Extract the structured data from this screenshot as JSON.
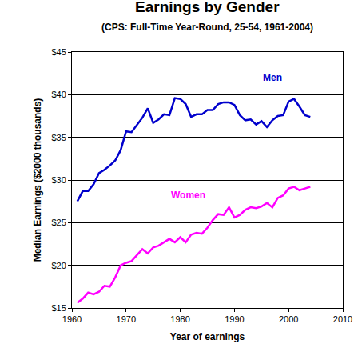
{
  "chart_data": {
    "type": "line",
    "title": "Earnings by Gender",
    "subtitle": "(CPS: Full-Time Year-Round, 25-54, 1961-2004)",
    "x_label": "Year of earnings",
    "y_label": "Median Earnings ($2000 thousands)",
    "x": [
      1961,
      1962,
      1963,
      1964,
      1965,
      1966,
      1967,
      1968,
      1969,
      1970,
      1971,
      1972,
      1973,
      1974,
      1975,
      1976,
      1977,
      1978,
      1979,
      1980,
      1981,
      1982,
      1983,
      1984,
      1985,
      1986,
      1987,
      1988,
      1989,
      1990,
      1991,
      1992,
      1993,
      1994,
      1995,
      1996,
      1997,
      1998,
      1999,
      2000,
      2001,
      2002,
      2003,
      2004
    ],
    "series": [
      {
        "name": "Men",
        "color": "#0000cc",
        "values": [
          27.5,
          28.7,
          28.7,
          29.5,
          30.8,
          31.2,
          31.7,
          32.3,
          33.5,
          35.7,
          35.6,
          36.5,
          37.3,
          38.4,
          36.7,
          37.1,
          37.7,
          37.6,
          39.6,
          39.5,
          38.9,
          37.4,
          37.7,
          37.7,
          38.2,
          38.2,
          38.9,
          39.1,
          39.1,
          38.8,
          37.6,
          37.0,
          37.1,
          36.5,
          36.9,
          36.2,
          37.0,
          37.5,
          37.6,
          39.2,
          39.5,
          38.6,
          37.6,
          37.4
        ]
      },
      {
        "name": "Women",
        "color": "#ff00ff",
        "values": [
          15.6,
          16.1,
          16.8,
          16.6,
          16.9,
          17.6,
          17.5,
          18.6,
          20.0,
          20.3,
          20.5,
          21.2,
          21.9,
          21.4,
          22.1,
          22.3,
          22.7,
          23.1,
          22.7,
          23.3,
          22.7,
          23.6,
          23.8,
          23.7,
          24.4,
          25.3,
          26.0,
          25.9,
          26.8,
          25.6,
          25.9,
          26.5,
          26.8,
          26.7,
          26.9,
          27.3,
          26.8,
          27.9,
          28.2,
          29.0,
          29.2,
          28.8,
          29.0,
          29.2
        ]
      }
    ],
    "xlim": [
      1960,
      2010
    ],
    "xticks": [
      1960,
      1970,
      1980,
      1990,
      2000,
      2010
    ],
    "ylim": [
      15,
      45
    ],
    "yticks": [
      {
        "value": 15,
        "label": "$15"
      },
      {
        "value": 20,
        "label": "$20"
      },
      {
        "value": 25,
        "label": "$25"
      },
      {
        "value": 30,
        "label": "$30"
      },
      {
        "value": 35,
        "label": "$35"
      },
      {
        "value": 40,
        "label": "$40"
      },
      {
        "value": 45,
        "label": "$45"
      }
    ],
    "grid": true
  }
}
